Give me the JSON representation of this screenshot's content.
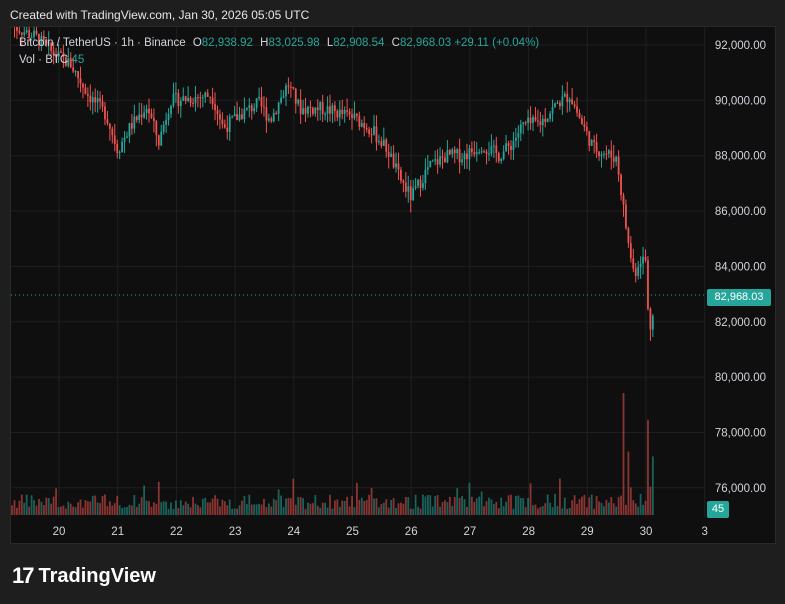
{
  "caption": "Created with TradingView.com, Jan 30, 2026 05:05 UTC",
  "legend": {
    "symbol": "Bitcoin / TetherUS · 1h · Binance",
    "o_label": "O",
    "o": "82,938.92",
    "h_label": "H",
    "h": "83,025.98",
    "l_label": "L",
    "l": "82,908.54",
    "c_label": "C",
    "c": "82,968.03",
    "change": "+29.11 (+0.04%)",
    "vol_label": "Vol · BTC",
    "vol": "45"
  },
  "current_price_label": "82,968.03",
  "current_volume_label": "45",
  "brand": {
    "mark": "17",
    "name": "TradingView"
  },
  "colors": {
    "up": "#26a69a",
    "down": "#ef5350",
    "grid": "#1f1f1f",
    "price_line": "#26a69a"
  },
  "chart_data": {
    "type": "candlestick",
    "title": "Bitcoin / TetherUS · 1h · Binance",
    "x_ticks": [
      "20",
      "21",
      "22",
      "23",
      "24",
      "25",
      "26",
      "27",
      "28",
      "29",
      "30",
      "3"
    ],
    "y_ticks": [
      "92,000.00",
      "90,000.00",
      "88,000.00",
      "86,000.00",
      "84,000.00",
      "82,000.00",
      "80,000.00",
      "78,000.00",
      "76,000.00"
    ],
    "ylim": [
      75000,
      93000
    ],
    "current_price": 82968.03,
    "price_path": [
      {
        "day": 19.2,
        "price": 92700
      },
      {
        "day": 19.6,
        "price": 92300
      },
      {
        "day": 19.9,
        "price": 91700
      },
      {
        "day": 20.2,
        "price": 91300
      },
      {
        "day": 20.5,
        "price": 90200
      },
      {
        "day": 20.8,
        "price": 89500
      },
      {
        "day": 21.0,
        "price": 88200
      },
      {
        "day": 21.2,
        "price": 89000
      },
      {
        "day": 21.5,
        "price": 89800
      },
      {
        "day": 21.7,
        "price": 88500
      },
      {
        "day": 21.9,
        "price": 90000
      },
      {
        "day": 22.3,
        "price": 90100
      },
      {
        "day": 22.6,
        "price": 90200
      },
      {
        "day": 22.8,
        "price": 89000
      },
      {
        "day": 23.1,
        "price": 89500
      },
      {
        "day": 23.4,
        "price": 89900
      },
      {
        "day": 23.6,
        "price": 89300
      },
      {
        "day": 23.9,
        "price": 90600
      },
      {
        "day": 24.1,
        "price": 89700
      },
      {
        "day": 24.5,
        "price": 89700
      },
      {
        "day": 25.0,
        "price": 89400
      },
      {
        "day": 25.3,
        "price": 89000
      },
      {
        "day": 25.6,
        "price": 88200
      },
      {
        "day": 25.8,
        "price": 87200
      },
      {
        "day": 26.0,
        "price": 86500
      },
      {
        "day": 26.3,
        "price": 87600
      },
      {
        "day": 26.6,
        "price": 88000
      },
      {
        "day": 26.9,
        "price": 88000
      },
      {
        "day": 27.2,
        "price": 88400
      },
      {
        "day": 27.5,
        "price": 88000
      },
      {
        "day": 27.7,
        "price": 88400
      },
      {
        "day": 27.9,
        "price": 89100
      },
      {
        "day": 28.2,
        "price": 89200
      },
      {
        "day": 28.5,
        "price": 89900
      },
      {
        "day": 28.7,
        "price": 90200
      },
      {
        "day": 28.9,
        "price": 89200
      },
      {
        "day": 29.1,
        "price": 88300
      },
      {
        "day": 29.3,
        "price": 88100
      },
      {
        "day": 29.5,
        "price": 87900
      },
      {
        "day": 29.7,
        "price": 84800
      },
      {
        "day": 29.8,
        "price": 83700
      },
      {
        "day": 29.9,
        "price": 84300
      },
      {
        "day": 30.0,
        "price": 84200
      },
      {
        "day": 30.05,
        "price": 81500
      },
      {
        "day": 30.12,
        "price": 82500
      },
      {
        "day": 30.14,
        "price": 82968
      }
    ],
    "volume_spikes": [
      {
        "day": 29.6,
        "volume": 1.0
      },
      {
        "day": 29.7,
        "volume": 0.52
      },
      {
        "day": 30.05,
        "volume": 0.78
      },
      {
        "day": 30.1,
        "volume": 0.48
      }
    ]
  }
}
